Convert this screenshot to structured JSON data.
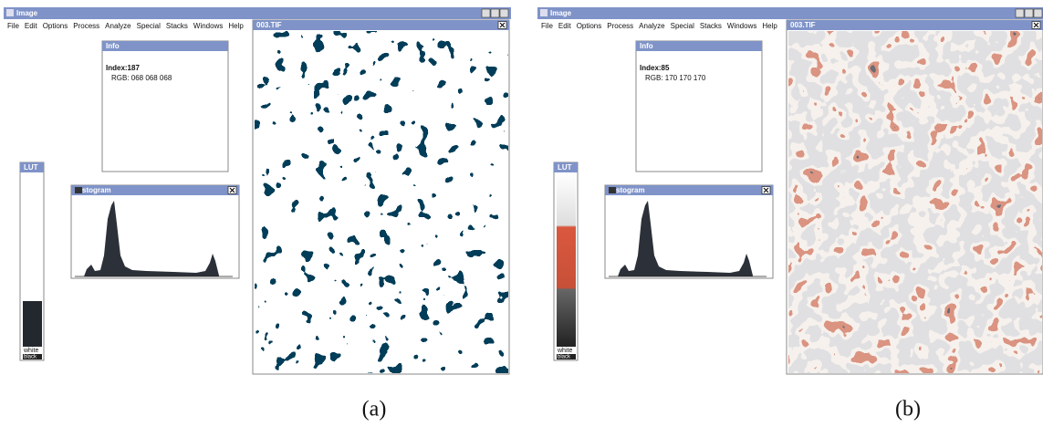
{
  "panels": [
    {
      "app_title": "Image",
      "menu": [
        "File",
        "Edit",
        "Options",
        "Process",
        "Analyze",
        "Special",
        "Stacks",
        "Windows",
        "Help"
      ],
      "info": {
        "title": "Info",
        "index": "Index:187",
        "rgb": "RGB: 068 068 068"
      },
      "histogram_title": "Histogram",
      "lut": {
        "title": "LUT",
        "white": "white",
        "black": "black"
      },
      "image_title": "003.TIF",
      "caption": "(a)"
    },
    {
      "app_title": "Image",
      "menu": [
        "File",
        "Edit",
        "Options",
        "Process",
        "Analyze",
        "Special",
        "Stacks",
        "Windows",
        "Help"
      ],
      "info": {
        "title": "Info",
        "index": "Index:85",
        "rgb": "RGB: 170 170 170"
      },
      "histogram_title": "Histogram",
      "lut": {
        "title": "LUT",
        "white": "white",
        "black": "black"
      },
      "image_title": "003.TIF",
      "caption": "(b)"
    }
  ]
}
